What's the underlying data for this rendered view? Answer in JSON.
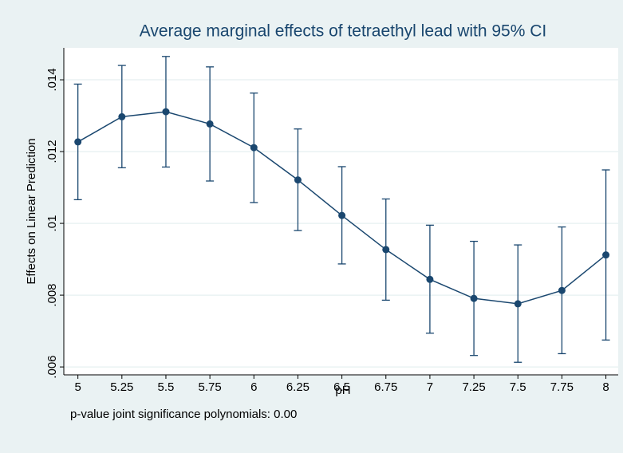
{
  "chart_data": {
    "type": "line",
    "title": "Average marginal effects of tetraethyl lead with 95% CI",
    "xlabel": "pH",
    "ylabel": "Effects on Linear Prediction",
    "note": "p-value joint significance polynomials: 0.00",
    "color": "#1a476f",
    "grid": true,
    "x": [
      5,
      5.25,
      5.5,
      5.75,
      6,
      6.25,
      6.5,
      6.75,
      7,
      7.25,
      7.5,
      7.75,
      8
    ],
    "values": [
      0.01227,
      0.01297,
      0.01311,
      0.01277,
      0.01211,
      0.01121,
      0.01022,
      0.00927,
      0.00844,
      0.00791,
      0.00776,
      0.00813,
      0.00912
    ],
    "ci_lower": [
      0.01066,
      0.01155,
      0.01157,
      0.01118,
      0.01058,
      0.0098,
      0.00887,
      0.00786,
      0.00694,
      0.00632,
      0.00613,
      0.00637,
      0.00675
    ],
    "ci_upper": [
      0.01388,
      0.0144,
      0.01465,
      0.01436,
      0.01363,
      0.01263,
      0.01158,
      0.01068,
      0.00995,
      0.0095,
      0.0094,
      0.0099,
      0.01149
    ],
    "xlim": [
      4.92,
      8.07
    ],
    "xticks": [
      5,
      5.25,
      5.5,
      5.75,
      6,
      6.25,
      6.5,
      6.75,
      7,
      7.25,
      7.5,
      7.75,
      8
    ],
    "ylim": [
      0.00578,
      0.01489
    ],
    "yticks": [
      {
        "value": 0.006,
        "label": ".006"
      },
      {
        "value": 0.008,
        "label": ".008"
      },
      {
        "value": 0.01,
        "label": ".01"
      },
      {
        "value": 0.012,
        "label": ".012"
      },
      {
        "value": 0.014,
        "label": ".014"
      }
    ]
  }
}
